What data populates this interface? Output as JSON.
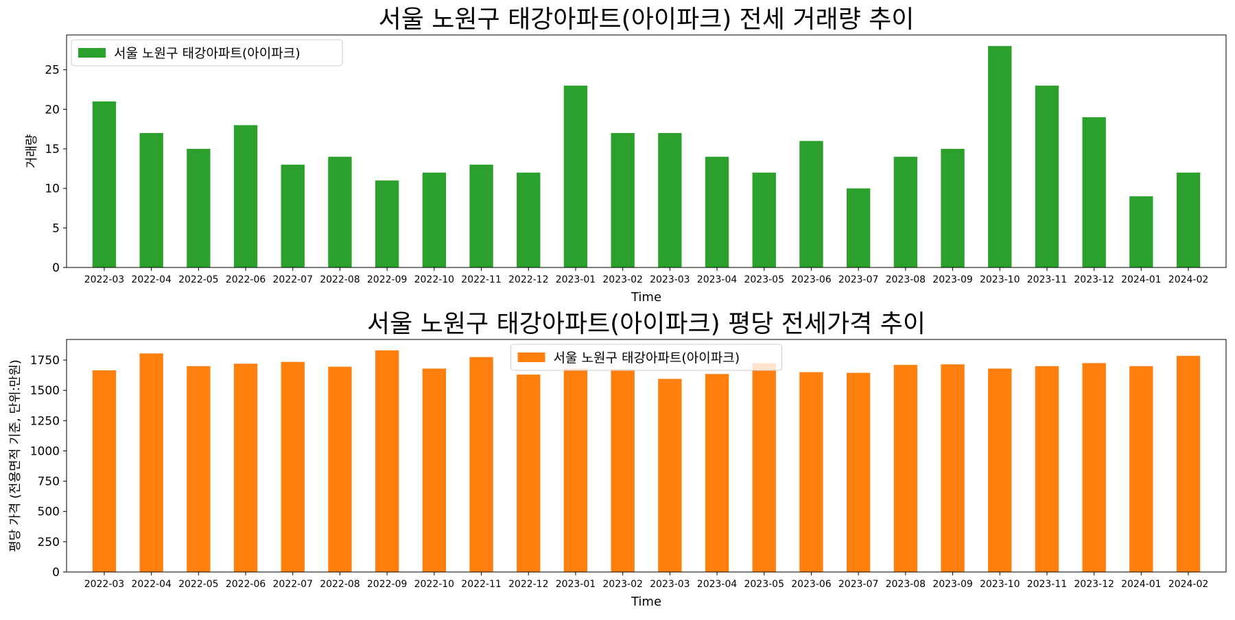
{
  "chart_data": [
    {
      "type": "bar",
      "title": "서울 노원구 태강아파트(아이파크) 전세 거래량 추이",
      "xlabel": "Time",
      "ylabel": "거래량",
      "ylim": [
        0,
        29.4
      ],
      "yticks": [
        0,
        5,
        10,
        15,
        20,
        25
      ],
      "legend_position": "upper left",
      "grid": false,
      "categories": [
        "2022-03",
        "2022-04",
        "2022-05",
        "2022-06",
        "2022-07",
        "2022-08",
        "2022-09",
        "2022-10",
        "2022-11",
        "2022-12",
        "2023-01",
        "2023-02",
        "2023-03",
        "2023-04",
        "2023-05",
        "2023-06",
        "2023-07",
        "2023-08",
        "2023-09",
        "2023-10",
        "2023-11",
        "2023-12",
        "2024-01",
        "2024-02"
      ],
      "series": [
        {
          "name": "서울 노원구 태강아파트(아이파크)",
          "color": "#2ca02c",
          "values": [
            21,
            17,
            15,
            18,
            13,
            14,
            11,
            12,
            13,
            12,
            23,
            17,
            17,
            14,
            12,
            16,
            10,
            14,
            15,
            28,
            23,
            19,
            9,
            12
          ]
        }
      ]
    },
    {
      "type": "bar",
      "title": "서울 노원구 태강아파트(아이파크) 평당 전세가격 추이",
      "xlabel": "Time",
      "ylabel": "평당 가격 (전용면적 기준, 단위:만원)",
      "ylim": [
        0,
        1920
      ],
      "yticks": [
        0,
        250,
        500,
        750,
        1000,
        1250,
        1500,
        1750
      ],
      "legend_position": "upper center",
      "grid": false,
      "categories": [
        "2022-03",
        "2022-04",
        "2022-05",
        "2022-06",
        "2022-07",
        "2022-08",
        "2022-09",
        "2022-10",
        "2022-11",
        "2022-12",
        "2023-01",
        "2023-02",
        "2023-03",
        "2023-04",
        "2023-05",
        "2023-06",
        "2023-07",
        "2023-08",
        "2023-09",
        "2023-10",
        "2023-11",
        "2023-12",
        "2024-01",
        "2024-02"
      ],
      "series": [
        {
          "name": "서울 노원구 태강아파트(아이파크)",
          "color": "#ff7f0e",
          "values": [
            1665,
            1805,
            1700,
            1720,
            1735,
            1695,
            1830,
            1680,
            1775,
            1630,
            1680,
            1675,
            1595,
            1635,
            1725,
            1650,
            1645,
            1710,
            1715,
            1680,
            1700,
            1725,
            1700,
            1785
          ]
        }
      ]
    }
  ]
}
